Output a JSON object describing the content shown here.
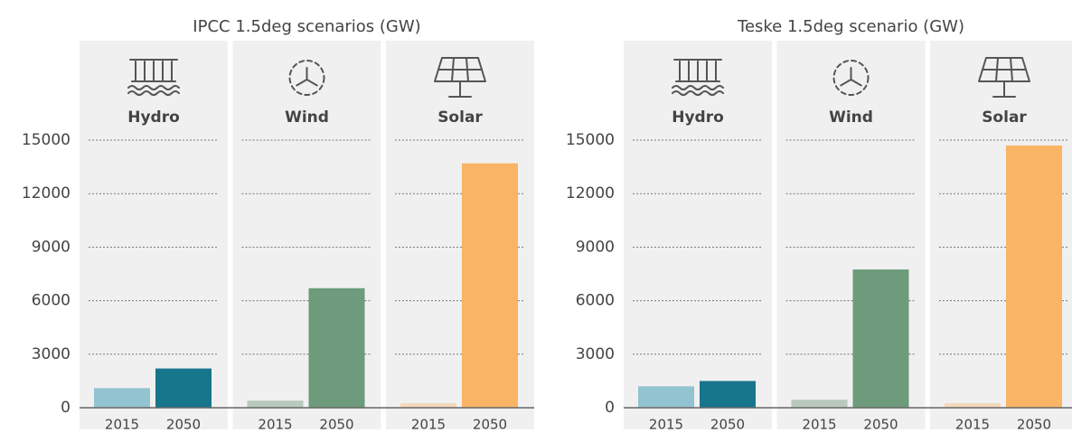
{
  "chart_data": [
    {
      "type": "bar",
      "title": "IPCC 1.5deg scenarios (GW)",
      "ylim": [
        0,
        15000
      ],
      "yticks": [
        0,
        3000,
        6000,
        9000,
        12000,
        15000
      ],
      "grid": true,
      "groups": [
        {
          "name": "Hydro",
          "categories": [
            "2015",
            "2050"
          ],
          "values": [
            1100,
            2200
          ],
          "colors": [
            "#92c3d0",
            "#17758c"
          ]
        },
        {
          "name": "Wind",
          "categories": [
            "2015",
            "2050"
          ],
          "values": [
            400,
            6700
          ],
          "colors": [
            "#b9c9bb",
            "#6e9b7b"
          ]
        },
        {
          "name": "Solar",
          "categories": [
            "2015",
            "2050"
          ],
          "values": [
            250,
            13700
          ],
          "colors": [
            "#f2d9b9",
            "#f9b466"
          ]
        }
      ]
    },
    {
      "type": "bar",
      "title": "Teske 1.5deg scenario (GW)",
      "ylim": [
        0,
        15000
      ],
      "yticks": [
        0,
        3000,
        6000,
        9000,
        12000,
        15000
      ],
      "grid": true,
      "groups": [
        {
          "name": "Hydro",
          "categories": [
            "2015",
            "2050"
          ],
          "values": [
            1200,
            1500
          ],
          "colors": [
            "#92c3d0",
            "#17758c"
          ]
        },
        {
          "name": "Wind",
          "categories": [
            "2015",
            "2050"
          ],
          "values": [
            450,
            7750
          ],
          "colors": [
            "#b9c9bb",
            "#6e9b7b"
          ]
        },
        {
          "name": "Solar",
          "categories": [
            "2015",
            "2050"
          ],
          "values": [
            250,
            14700
          ],
          "colors": [
            "#f2d9b9",
            "#f9b466"
          ]
        }
      ]
    }
  ]
}
